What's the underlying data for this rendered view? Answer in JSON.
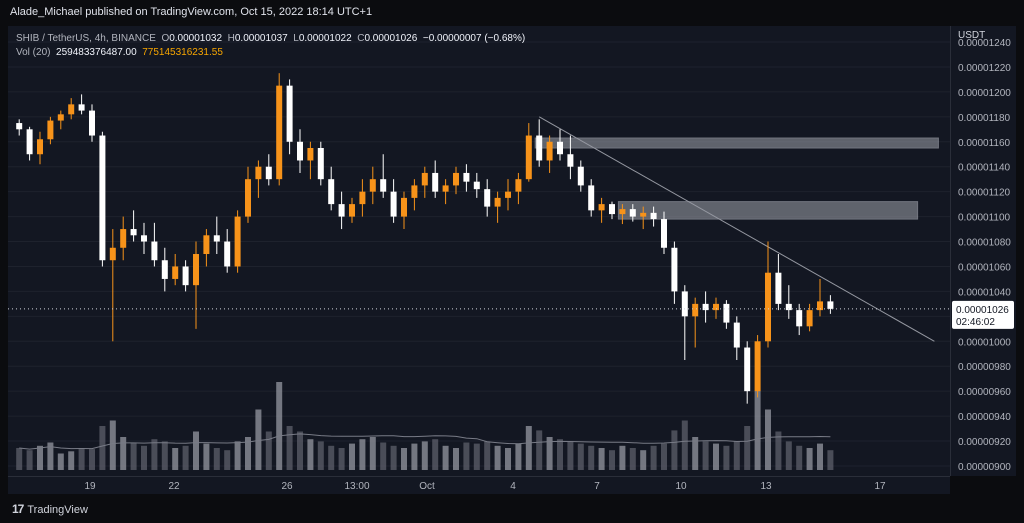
{
  "header": {
    "published": "Alade_Michael published on TradingView.com, Oct 15, 2022 18:14 UTC+1"
  },
  "legend": {
    "symbol": "SHIB / TetherUS, 4h, BINANCE",
    "o_label": "O",
    "o": "0.00001032",
    "h_label": "H",
    "h": "0.00001037",
    "l_label": "L",
    "l": "0.00001022",
    "c_label": "C",
    "c": "0.00001026",
    "change": "−0.00000007 (−0.68%)",
    "vol_label": "Vol (20)",
    "vol": "259483376487.00",
    "vol_ma": "775145316231.55"
  },
  "axis": {
    "currency": "USDT",
    "last_price": "0.00001026",
    "countdown": "02:46:02"
  },
  "footer": {
    "brand": "TradingView"
  },
  "colors": {
    "up": "#f7931a",
    "down": "#ffffff",
    "background": "#131722",
    "zone": "#9ea1aa"
  },
  "chart_data": {
    "type": "candlestick",
    "ylabel": "USDT",
    "ylim": [
      9e-06,
      1.24e-05
    ],
    "y_ticks": [
      "0.00001240",
      "0.00001220",
      "0.00001200",
      "0.00001180",
      "0.00001160",
      "0.00001140",
      "0.00001120",
      "0.00001100",
      "0.00001080",
      "0.00001060",
      "0.00001040",
      "0.00001020",
      "0.00001000",
      "0.00000980",
      "0.00000960",
      "0.00000940",
      "0.00000920",
      "0.00000900"
    ],
    "x_ticks": [
      "19",
      "22",
      "26",
      "13:00",
      "Oct",
      "4",
      "7",
      "10",
      "13",
      "17"
    ],
    "candles": [
      [
        1175,
        1178,
        1165,
        1170
      ],
      [
        1170,
        1172,
        1145,
        1150
      ],
      [
        1150,
        1168,
        1142,
        1162
      ],
      [
        1162,
        1180,
        1158,
        1177
      ],
      [
        1177,
        1185,
        1170,
        1182
      ],
      [
        1182,
        1195,
        1178,
        1190
      ],
      [
        1190,
        1198,
        1182,
        1185
      ],
      [
        1185,
        1190,
        1160,
        1165
      ],
      [
        1165,
        1168,
        1060,
        1065
      ],
      [
        1065,
        1090,
        1000,
        1075
      ],
      [
        1075,
        1100,
        1065,
        1090
      ],
      [
        1090,
        1105,
        1080,
        1085
      ],
      [
        1085,
        1095,
        1070,
        1080
      ],
      [
        1080,
        1095,
        1060,
        1065
      ],
      [
        1065,
        1075,
        1040,
        1050
      ],
      [
        1050,
        1070,
        1045,
        1060
      ],
      [
        1060,
        1065,
        1040,
        1045
      ],
      [
        1045,
        1080,
        1010,
        1070
      ],
      [
        1070,
        1090,
        1060,
        1085
      ],
      [
        1085,
        1100,
        1070,
        1080
      ],
      [
        1080,
        1090,
        1055,
        1060
      ],
      [
        1060,
        1105,
        1055,
        1100
      ],
      [
        1100,
        1140,
        1095,
        1130
      ],
      [
        1130,
        1145,
        1115,
        1140
      ],
      [
        1140,
        1150,
        1125,
        1130
      ],
      [
        1130,
        1215,
        1125,
        1205
      ],
      [
        1205,
        1210,
        1150,
        1160
      ],
      [
        1160,
        1170,
        1135,
        1145
      ],
      [
        1145,
        1160,
        1130,
        1155
      ],
      [
        1155,
        1160,
        1125,
        1130
      ],
      [
        1130,
        1140,
        1105,
        1110
      ],
      [
        1110,
        1120,
        1090,
        1100
      ],
      [
        1100,
        1115,
        1095,
        1110
      ],
      [
        1110,
        1130,
        1100,
        1120
      ],
      [
        1120,
        1140,
        1110,
        1130
      ],
      [
        1130,
        1150,
        1115,
        1120
      ],
      [
        1120,
        1130,
        1095,
        1100
      ],
      [
        1100,
        1120,
        1090,
        1115
      ],
      [
        1115,
        1130,
        1105,
        1125
      ],
      [
        1125,
        1140,
        1115,
        1135
      ],
      [
        1135,
        1145,
        1115,
        1120
      ],
      [
        1120,
        1130,
        1110,
        1125
      ],
      [
        1125,
        1140,
        1118,
        1135
      ],
      [
        1135,
        1142,
        1120,
        1128
      ],
      [
        1128,
        1135,
        1115,
        1122
      ],
      [
        1122,
        1130,
        1100,
        1108
      ],
      [
        1108,
        1120,
        1095,
        1115
      ],
      [
        1115,
        1130,
        1105,
        1120
      ],
      [
        1120,
        1135,
        1110,
        1130
      ],
      [
        1130,
        1175,
        1128,
        1165
      ],
      [
        1165,
        1178,
        1140,
        1145
      ],
      [
        1145,
        1165,
        1135,
        1160
      ],
      [
        1160,
        1170,
        1145,
        1150
      ],
      [
        1150,
        1165,
        1130,
        1140
      ],
      [
        1140,
        1145,
        1120,
        1125
      ],
      [
        1125,
        1130,
        1100,
        1105
      ],
      [
        1105,
        1115,
        1095,
        1110
      ],
      [
        1110,
        1112,
        1098,
        1102
      ],
      [
        1102,
        1110,
        1094,
        1106
      ],
      [
        1106,
        1110,
        1096,
        1100
      ],
      [
        1100,
        1108,
        1090,
        1103
      ],
      [
        1103,
        1108,
        1092,
        1098
      ],
      [
        1098,
        1104,
        1070,
        1075
      ],
      [
        1075,
        1080,
        1030,
        1040
      ],
      [
        1040,
        1045,
        985,
        1020
      ],
      [
        1020,
        1035,
        995,
        1030
      ],
      [
        1030,
        1040,
        1015,
        1025
      ],
      [
        1025,
        1035,
        1018,
        1030
      ],
      [
        1030,
        1033,
        1010,
        1015
      ],
      [
        1015,
        1020,
        985,
        995
      ],
      [
        995,
        1000,
        950,
        960
      ],
      [
        960,
        1005,
        955,
        1000
      ],
      [
        1000,
        1080,
        995,
        1055
      ],
      [
        1055,
        1070,
        1025,
        1030
      ],
      [
        1030,
        1045,
        1018,
        1025
      ],
      [
        1025,
        1030,
        1005,
        1012
      ],
      [
        1012,
        1030,
        1008,
        1025
      ],
      [
        1025,
        1050,
        1020,
        1032
      ],
      [
        1032,
        1037,
        1022,
        1026
      ]
    ],
    "volume_ylim": [
      0,
      100
    ],
    "volumes": [
      20,
      18,
      22,
      25,
      15,
      17,
      20,
      19,
      40,
      45,
      30,
      25,
      22,
      28,
      26,
      20,
      22,
      35,
      24,
      20,
      18,
      26,
      30,
      55,
      35,
      80,
      40,
      35,
      28,
      26,
      22,
      20,
      24,
      28,
      30,
      25,
      22,
      20,
      24,
      26,
      28,
      22,
      20,
      25,
      24,
      26,
      22,
      20,
      24,
      40,
      36,
      30,
      28,
      26,
      24,
      22,
      20,
      18,
      22,
      20,
      18,
      22,
      24,
      36,
      45,
      30,
      26,
      24,
      22,
      26,
      40,
      72,
      55,
      35,
      26,
      22,
      20,
      24,
      18
    ],
    "zones": [
      {
        "from_candle": 50,
        "to_candle": 88,
        "low": 1155,
        "high": 1163
      },
      {
        "from_candle": 58,
        "to_candle": 86,
        "low": 1098,
        "high": 1112
      }
    ],
    "trendline": [
      [
        50,
        1180
      ],
      [
        88,
        1000
      ]
    ],
    "last_close": 1026,
    "price_scale_factor": 1e-08
  }
}
